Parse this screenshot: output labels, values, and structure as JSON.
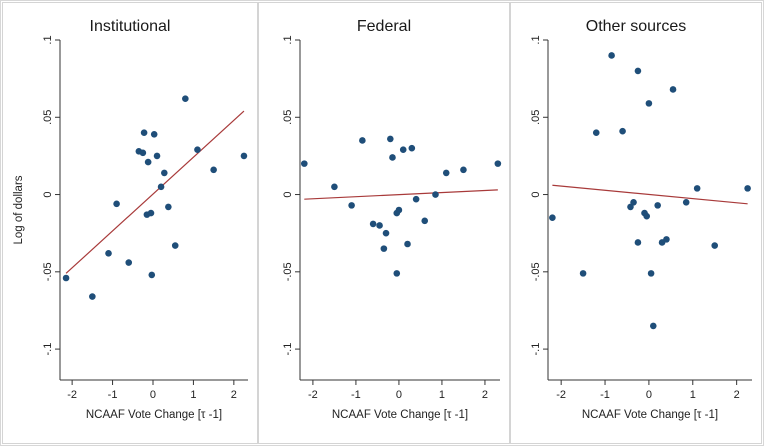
{
  "chart_data": [
    {
      "type": "scatter",
      "title": "Institutional",
      "xlabel": "NCAAF Vote Change [τ -1]",
      "ylabel": "Log of dollars",
      "xlim": [
        -2.3,
        2.35
      ],
      "ylim": [
        -0.12,
        0.1
      ],
      "xticks": [
        -2,
        -1,
        0,
        1,
        2
      ],
      "yticks": [
        -0.1,
        -0.05,
        0,
        0.05,
        0.1
      ],
      "ytick_labels": [
        "-.1",
        "-.05",
        "0",
        ".05",
        ".1"
      ],
      "grid": false,
      "points": [
        {
          "x": -2.15,
          "y": -0.054
        },
        {
          "x": -1.5,
          "y": -0.066
        },
        {
          "x": -1.1,
          "y": -0.038
        },
        {
          "x": -0.9,
          "y": -0.006
        },
        {
          "x": -0.6,
          "y": -0.044
        },
        {
          "x": -0.35,
          "y": 0.028
        },
        {
          "x": -0.25,
          "y": 0.027
        },
        {
          "x": -0.22,
          "y": 0.04
        },
        {
          "x": -0.12,
          "y": 0.021
        },
        {
          "x": -0.15,
          "y": -0.013
        },
        {
          "x": -0.05,
          "y": -0.012
        },
        {
          "x": -0.03,
          "y": -0.052
        },
        {
          "x": 0.03,
          "y": 0.039
        },
        {
          "x": 0.1,
          "y": 0.025
        },
        {
          "x": 0.2,
          "y": 0.005
        },
        {
          "x": 0.28,
          "y": 0.014
        },
        {
          "x": 0.38,
          "y": -0.008
        },
        {
          "x": 0.55,
          "y": -0.033
        },
        {
          "x": 0.8,
          "y": 0.062
        },
        {
          "x": 1.1,
          "y": 0.029
        },
        {
          "x": 1.5,
          "y": 0.016
        },
        {
          "x": 2.25,
          "y": 0.025
        }
      ],
      "fit_line": {
        "x": [
          -2.15,
          2.25
        ],
        "y": [
          -0.051,
          0.054
        ]
      },
      "colors": {
        "points": "#1f4e79",
        "fit": "#a83a3a"
      }
    },
    {
      "type": "scatter",
      "title": "Federal",
      "xlabel": "NCAAF Vote Change [τ -1]",
      "ylabel": "",
      "xlim": [
        -2.3,
        2.35
      ],
      "ylim": [
        -0.12,
        0.1
      ],
      "xticks": [
        -2,
        -1,
        0,
        1,
        2
      ],
      "yticks": [
        -0.1,
        -0.05,
        0,
        0.05,
        0.1
      ],
      "ytick_labels": [
        "-.1",
        "-.05",
        "0",
        ".05",
        ".1"
      ],
      "grid": false,
      "points": [
        {
          "x": -2.2,
          "y": 0.02
        },
        {
          "x": -1.5,
          "y": 0.005
        },
        {
          "x": -1.1,
          "y": -0.007
        },
        {
          "x": -0.85,
          "y": 0.035
        },
        {
          "x": -0.6,
          "y": -0.019
        },
        {
          "x": -0.45,
          "y": -0.02
        },
        {
          "x": -0.3,
          "y": -0.025
        },
        {
          "x": -0.35,
          "y": -0.035
        },
        {
          "x": -0.2,
          "y": 0.036
        },
        {
          "x": -0.15,
          "y": 0.024
        },
        {
          "x": -0.05,
          "y": -0.012
        },
        {
          "x": 0.0,
          "y": -0.01
        },
        {
          "x": 0.1,
          "y": 0.029
        },
        {
          "x": 0.3,
          "y": 0.03
        },
        {
          "x": -0.05,
          "y": -0.051
        },
        {
          "x": 0.2,
          "y": -0.032
        },
        {
          "x": 0.4,
          "y": -0.003
        },
        {
          "x": 0.6,
          "y": -0.017
        },
        {
          "x": 0.85,
          "y": 0.0
        },
        {
          "x": 1.1,
          "y": 0.014
        },
        {
          "x": 1.5,
          "y": 0.016
        },
        {
          "x": 2.3,
          "y": 0.02
        }
      ],
      "fit_line": {
        "x": [
          -2.2,
          2.3
        ],
        "y": [
          -0.003,
          0.003
        ]
      },
      "colors": {
        "points": "#1f4e79",
        "fit": "#a83a3a"
      }
    },
    {
      "type": "scatter",
      "title": "Other sources",
      "xlabel": "NCAAF Vote Change [τ -1]",
      "ylabel": "",
      "xlim": [
        -2.3,
        2.35
      ],
      "ylim": [
        -0.12,
        0.1
      ],
      "xticks": [
        -2,
        -1,
        0,
        1,
        2
      ],
      "yticks": [
        -0.1,
        -0.05,
        0,
        0.05,
        0.1
      ],
      "ytick_labels": [
        "-.1",
        "-.05",
        "0",
        ".05",
        ".1"
      ],
      "grid": false,
      "points": [
        {
          "x": -2.2,
          "y": -0.015
        },
        {
          "x": -1.5,
          "y": -0.051
        },
        {
          "x": -1.2,
          "y": 0.04
        },
        {
          "x": -0.85,
          "y": 0.09
        },
        {
          "x": -0.6,
          "y": 0.041
        },
        {
          "x": -0.42,
          "y": -0.008
        },
        {
          "x": -0.35,
          "y": -0.005
        },
        {
          "x": -0.25,
          "y": 0.08
        },
        {
          "x": -0.25,
          "y": -0.031
        },
        {
          "x": -0.1,
          "y": -0.012
        },
        {
          "x": -0.05,
          "y": -0.014
        },
        {
          "x": 0.0,
          "y": 0.059
        },
        {
          "x": 0.05,
          "y": -0.051
        },
        {
          "x": 0.1,
          "y": -0.085
        },
        {
          "x": 0.2,
          "y": -0.007
        },
        {
          "x": 0.3,
          "y": -0.031
        },
        {
          "x": 0.4,
          "y": -0.029
        },
        {
          "x": 0.55,
          "y": 0.068
        },
        {
          "x": 0.85,
          "y": -0.005
        },
        {
          "x": 1.1,
          "y": 0.004
        },
        {
          "x": 1.5,
          "y": -0.033
        },
        {
          "x": 2.25,
          "y": 0.004
        }
      ],
      "fit_line": {
        "x": [
          -2.2,
          2.25
        ],
        "y": [
          0.006,
          -0.006
        ]
      },
      "colors": {
        "points": "#1f4e79",
        "fit": "#a83a3a"
      }
    }
  ]
}
